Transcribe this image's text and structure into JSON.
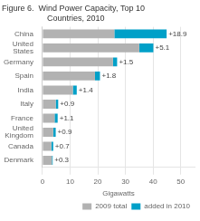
{
  "chart_data": {
    "type": "bar",
    "orientation": "horizontal",
    "stacked": true,
    "title": [
      "Figure 6.  Wind Power Capacity, Top 10",
      "                    Countries, 2010"
    ],
    "categories": [
      "China",
      "United\nStates",
      "Germany",
      "Spain",
      "India",
      "Italy",
      "France",
      "United\nKingdom",
      "Canada",
      "Denmark"
    ],
    "series": [
      {
        "name": "2009 total",
        "color": "#b2b2b2",
        "values": [
          26.0,
          35.0,
          25.5,
          19.0,
          11.0,
          4.8,
          4.4,
          3.9,
          3.2,
          3.4
        ]
      },
      {
        "name": "added in 2010",
        "color": "#00a0c8",
        "values": [
          18.9,
          5.1,
          1.5,
          1.8,
          1.4,
          0.9,
          1.1,
          0.9,
          0.7,
          0.3
        ],
        "value_labels": [
          "+18.9",
          "+5.1",
          "+1.5",
          "+1.8",
          "+1.4",
          "+0.9",
          "+1.1",
          "+0.9",
          "+0.7",
          "+0.3"
        ]
      }
    ],
    "xlabel": "Gigawatts",
    "xlim": [
      0,
      55
    ],
    "xticks": [
      0,
      10,
      20,
      30,
      40,
      50
    ],
    "grid": true,
    "legend": "lower right"
  }
}
